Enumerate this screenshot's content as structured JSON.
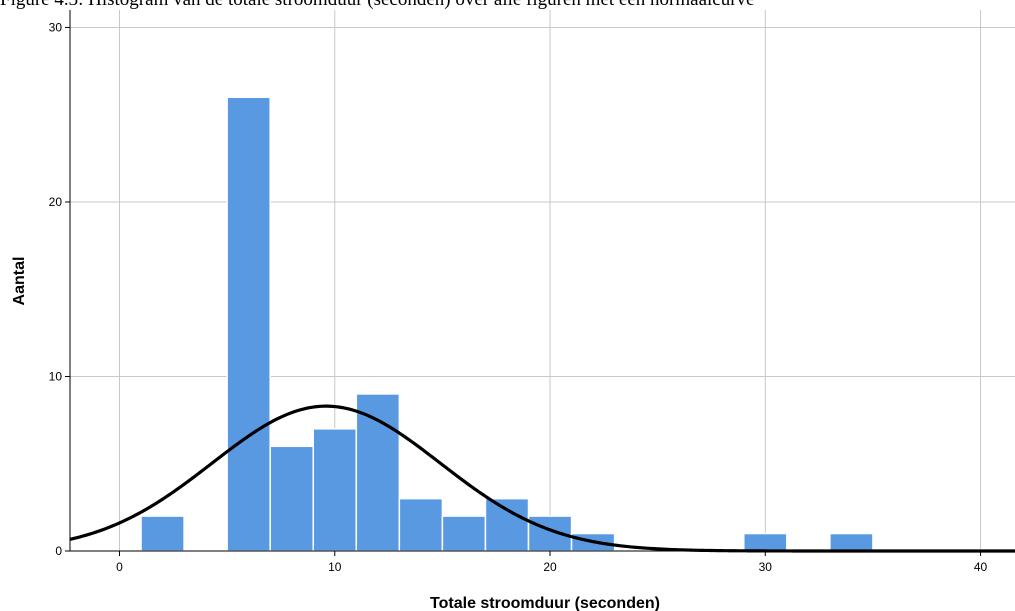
{
  "caption": "Figure 4.3: Histogram van de totale stroomduur (seconden) over alle figuren met een normaalcurve",
  "chart_data": {
    "type": "bar",
    "subtype": "histogram",
    "title": "",
    "xlabel": "Totale stroomduur (seconden)",
    "ylabel": "Aantal",
    "xlim": [
      -2.3,
      41.6
    ],
    "ylim": [
      0,
      31
    ],
    "x_ticks": [
      0,
      10,
      20,
      30,
      40
    ],
    "y_ticks": [
      0,
      10,
      20,
      30
    ],
    "grid": true,
    "bar_color": "#5899e2",
    "bins": [
      {
        "start": 1,
        "end": 3,
        "count": 2
      },
      {
        "start": 3,
        "end": 5,
        "count": 0
      },
      {
        "start": 5,
        "end": 7,
        "count": 26
      },
      {
        "start": 7,
        "end": 9,
        "count": 6
      },
      {
        "start": 9,
        "end": 11,
        "count": 7
      },
      {
        "start": 11,
        "end": 13,
        "count": 9
      },
      {
        "start": 13,
        "end": 15,
        "count": 3
      },
      {
        "start": 15,
        "end": 17,
        "count": 2
      },
      {
        "start": 17,
        "end": 19,
        "count": 3
      },
      {
        "start": 19,
        "end": 21,
        "count": 2
      },
      {
        "start": 21,
        "end": 23,
        "count": 1
      },
      {
        "start": 23,
        "end": 25,
        "count": 0
      },
      {
        "start": 25,
        "end": 27,
        "count": 0
      },
      {
        "start": 27,
        "end": 29,
        "count": 0
      },
      {
        "start": 29,
        "end": 31,
        "count": 1
      },
      {
        "start": 31,
        "end": 33,
        "count": 0
      },
      {
        "start": 33,
        "end": 35,
        "count": 1
      }
    ],
    "normal_curve": {
      "mean": 9.6,
      "sd": 5.3,
      "peak": 8.3,
      "color": "#000000"
    }
  }
}
